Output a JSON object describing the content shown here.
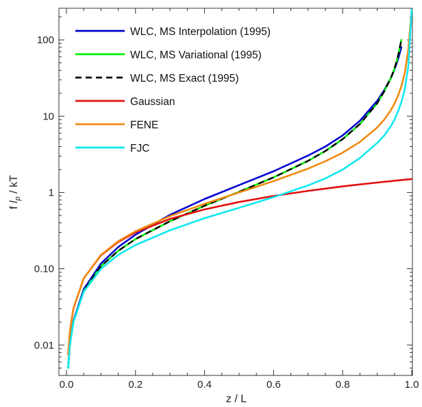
{
  "chart_data": {
    "type": "line",
    "title": "",
    "xlabel": "z / L",
    "ylabel_parts": [
      "f ",
      "l",
      "p",
      " / kT"
    ],
    "xlim": [
      0,
      1
    ],
    "ylim": [
      0.004,
      260
    ],
    "yscale": "log",
    "grid": false,
    "legend_position": "top-left",
    "xticks": [
      0,
      0.2,
      0.4,
      0.6,
      0.8,
      1.0
    ],
    "xtick_labels": [
      "0.0",
      "0.2",
      "0.4",
      "0.6",
      "0.8",
      "1.0"
    ],
    "yticks": [
      0.01,
      0.1,
      1,
      10,
      100
    ],
    "ytick_labels": [
      "0.01",
      "0.10",
      "1",
      "10",
      "100"
    ],
    "x": [
      0.005,
      0.01,
      0.02,
      0.05,
      0.1,
      0.15,
      0.2,
      0.3,
      0.4,
      0.5,
      0.6,
      0.7,
      0.75,
      0.8,
      0.85,
      0.9,
      0.92,
      0.94,
      0.95,
      0.96,
      0.97,
      0.98,
      0.99,
      1.0
    ],
    "series": [
      {
        "name": "WLC, MS Interpolation (1995)",
        "color": "#0000d0",
        "dashed": false,
        "width": 2.6,
        "values": [
          0.005,
          0.0102,
          0.0206,
          0.054,
          0.117,
          0.193,
          0.28,
          0.51,
          0.82,
          1.25,
          1.9,
          3.05,
          4.0,
          5.6,
          8.7,
          15.9,
          21.8,
          32.0,
          41.0,
          55.0,
          80.0,
          null,
          null,
          null
        ]
      },
      {
        "name": "WLC, MS Variational (1995)",
        "color": "#00ee00",
        "dashed": false,
        "width": 2.6,
        "values": [
          0.005,
          0.01,
          0.02,
          0.051,
          0.108,
          0.172,
          0.245,
          0.42,
          0.67,
          1.02,
          1.58,
          2.6,
          3.5,
          5.0,
          7.9,
          14.8,
          21.0,
          32.0,
          42.0,
          60.0,
          100.0,
          null,
          null,
          null
        ]
      },
      {
        "name": "WLC, MS Exact (1995)",
        "color": "#000000",
        "dashed": true,
        "width": 2.4,
        "values": [
          0.005,
          0.01,
          0.02,
          0.051,
          0.108,
          0.172,
          0.245,
          0.42,
          0.67,
          1.02,
          1.58,
          2.6,
          3.5,
          5.0,
          7.9,
          14.8,
          21.0,
          32.0,
          42.0,
          60.0,
          100.0,
          null,
          null,
          null
        ]
      },
      {
        "name": "Gaussian",
        "color": "#e01010",
        "dashed": false,
        "width": 2.6,
        "values": [
          0.0075,
          0.015,
          0.03,
          0.075,
          0.15,
          0.225,
          0.3,
          0.45,
          0.6,
          0.75,
          0.9,
          1.05,
          1.125,
          1.2,
          1.275,
          1.35,
          1.38,
          1.41,
          1.425,
          1.44,
          1.455,
          1.47,
          1.485,
          1.5
        ]
      },
      {
        "name": "FENE",
        "color": "#f08a10",
        "dashed": false,
        "width": 2.6,
        "values": [
          0.0075,
          0.015,
          0.03,
          0.075,
          0.152,
          0.23,
          0.31,
          0.49,
          0.71,
          1.0,
          1.41,
          2.06,
          2.57,
          3.33,
          4.6,
          7.1,
          8.98,
          12.1,
          14.6,
          18.4,
          24.6,
          37.1,
          74.6,
          250.0
        ]
      },
      {
        "name": "FJC",
        "color": "#10e8f0",
        "dashed": false,
        "width": 2.6,
        "values": [
          0.005,
          0.01,
          0.02,
          0.05,
          0.1,
          0.152,
          0.205,
          0.32,
          0.46,
          0.63,
          0.87,
          1.24,
          1.53,
          2.0,
          2.83,
          4.47,
          5.55,
          7.47,
          9.0,
          11.4,
          15.3,
          22.6,
          45.1,
          250.0
        ]
      }
    ]
  }
}
